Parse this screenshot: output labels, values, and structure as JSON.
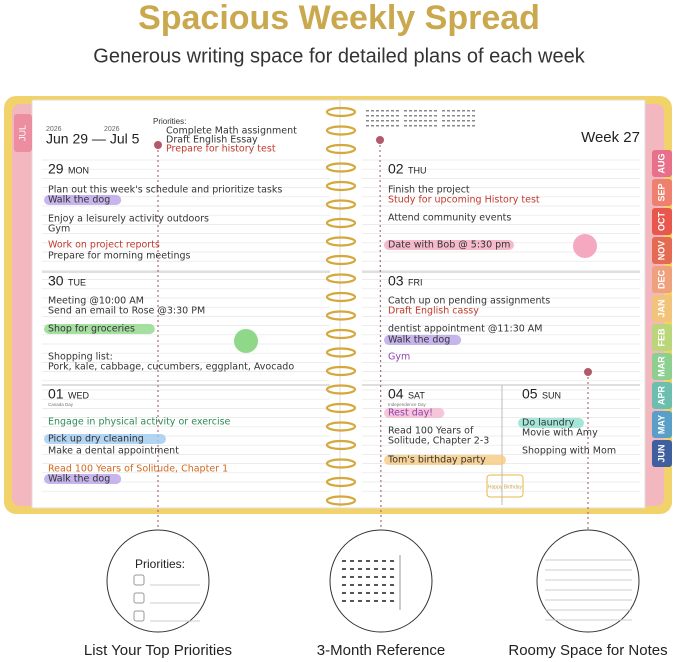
{
  "header": {
    "title": "Spacious Weekly Spread",
    "subtitle": "Generous writing space for detailed plans of each week"
  },
  "planner": {
    "tab_left": "JUL",
    "year_start": "2026",
    "year_end": "2026",
    "range": "Jun 29 — Jul 5",
    "priorities": {
      "label": "Priorities:",
      "items": [
        "Complete Math assignment",
        "Draft English Essay",
        "Prepare for history test"
      ]
    },
    "week": "Week 27",
    "days": [
      {
        "num": "29",
        "name": "MON",
        "entries": [
          "Plan out this week's schedule and prioritize tasks",
          "Walk the dog",
          "Enjoy a leisurely activity outdoors",
          "Gym",
          "Work on project reports",
          "Prepare for morning meetings"
        ]
      },
      {
        "num": "30",
        "name": "TUE",
        "entries": [
          "Meeting @10:00 AM",
          "Send an email to Rose @3:30 PM",
          "Shop for groceries",
          "Shopping list:",
          "Pork, kale, cabbage, cucumbers, eggplant, Avocado"
        ]
      },
      {
        "num": "01",
        "name": "WED",
        "note": "Canada Day",
        "entries": [
          "Engage in physical activity or exercise",
          "Pick up dry cleaning",
          "Make a dental appointment",
          "Read 100 Years of Solitude, Chapter 1",
          "Walk the dog"
        ]
      },
      {
        "num": "02",
        "name": "THU",
        "entries": [
          "Finish the project",
          "Study for upcoming History test",
          "Attend community events",
          "Date with Bob @ 5:30 pm"
        ]
      },
      {
        "num": "03",
        "name": "FRI",
        "entries": [
          "Catch up on pending assignments",
          "Draft English cassy",
          "dentist appointment @11:30 AM",
          "Walk the dog",
          "Gym"
        ]
      },
      {
        "num": "04",
        "name": "SAT",
        "note": "Independence Day",
        "entries": [
          "Rest day!",
          "Read 100 Years of",
          "Solitude, Chapter 2-3",
          "Tom's birthday party"
        ]
      },
      {
        "num": "05",
        "name": "SUN",
        "entries": [
          "Do laundry",
          "Movie with Amy",
          "Shopping with Mom"
        ]
      }
    ],
    "tabs": [
      "AUG",
      "SEP",
      "OCT",
      "NOV",
      "DEC",
      "JAN",
      "FEB",
      "MAR",
      "APR",
      "MAY",
      "JUN"
    ],
    "cake": "Happy Birthday"
  },
  "callouts": [
    {
      "label": "List Your Top Priorities",
      "inset": "Priorities:"
    },
    {
      "label": "3-Month Reference"
    },
    {
      "label": "Roomy Space for Notes"
    }
  ]
}
